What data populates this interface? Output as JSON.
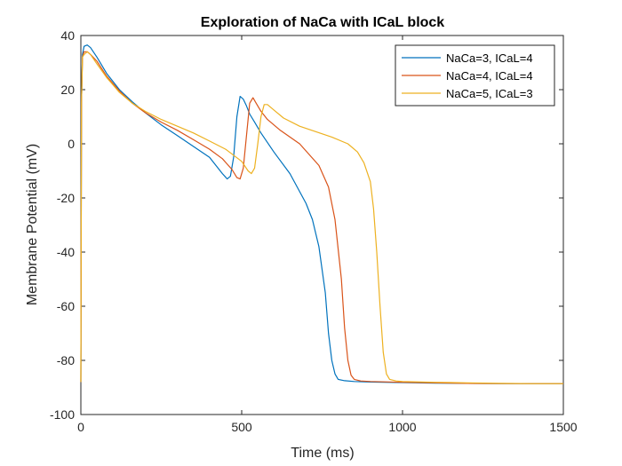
{
  "chart_data": {
    "type": "line",
    "title": "Exploration of NaCa with ICaL block",
    "xlabel": "Time (ms)",
    "ylabel": "Membrane Potential (mV)",
    "xlim": [
      0,
      1500
    ],
    "ylim": [
      -100,
      40
    ],
    "xticks": [
      0,
      500,
      1000,
      1500
    ],
    "yticks": [
      -100,
      -80,
      -60,
      -40,
      -20,
      0,
      20,
      40
    ],
    "xtick_labels": [
      "0",
      "500",
      "1000",
      "1500"
    ],
    "ytick_labels": [
      "-100",
      "-80",
      "-60",
      "-40",
      "-20",
      "0",
      "20",
      "40"
    ],
    "grid": false,
    "legend_position": "top-right",
    "series": [
      {
        "name": "NaCa=3, ICaL=4",
        "color": "#0072BD",
        "x": [
          0,
          2,
          5,
          10,
          20,
          30,
          50,
          80,
          120,
          160,
          200,
          250,
          300,
          350,
          400,
          420,
          440,
          455,
          465,
          475,
          485,
          495,
          505,
          515,
          525,
          540,
          560,
          600,
          650,
          700,
          720,
          740,
          760,
          770,
          780,
          790,
          800,
          820,
          850,
          900,
          1000,
          1100,
          1200,
          1300,
          1400,
          1500
        ],
        "y": [
          -88,
          15,
          33,
          36,
          36.5,
          35.5,
          32,
          26,
          20,
          15.5,
          11.5,
          7,
          3,
          -1,
          -5,
          -8,
          -11,
          -13,
          -12,
          -5,
          10,
          17.5,
          16.5,
          14,
          11,
          8,
          4,
          -3,
          -11,
          -22,
          -28,
          -38,
          -55,
          -70,
          -80,
          -85,
          -87,
          -87.5,
          -87.8,
          -88,
          -88.2,
          -88.4,
          -88.5,
          -88.6,
          -88.6,
          -88.6
        ]
      },
      {
        "name": "NaCa=4, ICaL=4",
        "color": "#D95319",
        "x": [
          0,
          2,
          5,
          10,
          20,
          30,
          50,
          80,
          120,
          160,
          200,
          250,
          300,
          350,
          400,
          440,
          470,
          485,
          495,
          505,
          515,
          525,
          535,
          545,
          560,
          580,
          620,
          680,
          740,
          770,
          790,
          810,
          820,
          830,
          840,
          850,
          870,
          900,
          1000,
          1100,
          1200,
          1300,
          1400,
          1500
        ],
        "y": [
          -88,
          15,
          32,
          34,
          34,
          33,
          30.5,
          25,
          19.5,
          15,
          11.5,
          8,
          5,
          1.5,
          -2,
          -5.5,
          -9.5,
          -12.5,
          -13,
          -9,
          3,
          15,
          17,
          15,
          12,
          9,
          5,
          0,
          -8,
          -16,
          -28,
          -50,
          -68,
          -80,
          -85.5,
          -87,
          -87.6,
          -87.8,
          -88.1,
          -88.3,
          -88.5,
          -88.6,
          -88.6,
          -88.6
        ]
      },
      {
        "name": "NaCa=5, ICaL=3",
        "color": "#EDB120",
        "x": [
          0,
          2,
          5,
          10,
          20,
          30,
          50,
          80,
          120,
          160,
          200,
          250,
          300,
          350,
          400,
          450,
          500,
          520,
          530,
          540,
          550,
          560,
          570,
          580,
          600,
          630,
          680,
          730,
          780,
          830,
          860,
          880,
          900,
          910,
          920,
          930,
          940,
          950,
          960,
          980,
          1000,
          1100,
          1200,
          1300,
          1400,
          1500
        ],
        "y": [
          -88,
          15,
          32,
          33,
          34,
          33,
          29.5,
          24.5,
          19,
          15,
          12,
          9,
          6.5,
          4,
          1,
          -2,
          -6.5,
          -10,
          -11,
          -9,
          0,
          10,
          14.5,
          14.5,
          12.5,
          9.5,
          6.5,
          4.5,
          2.5,
          0,
          -3,
          -7,
          -14,
          -24,
          -40,
          -60,
          -77,
          -85,
          -87,
          -87.6,
          -87.8,
          -88.1,
          -88.3,
          -88.5,
          -88.6,
          -88.6
        ]
      }
    ]
  }
}
